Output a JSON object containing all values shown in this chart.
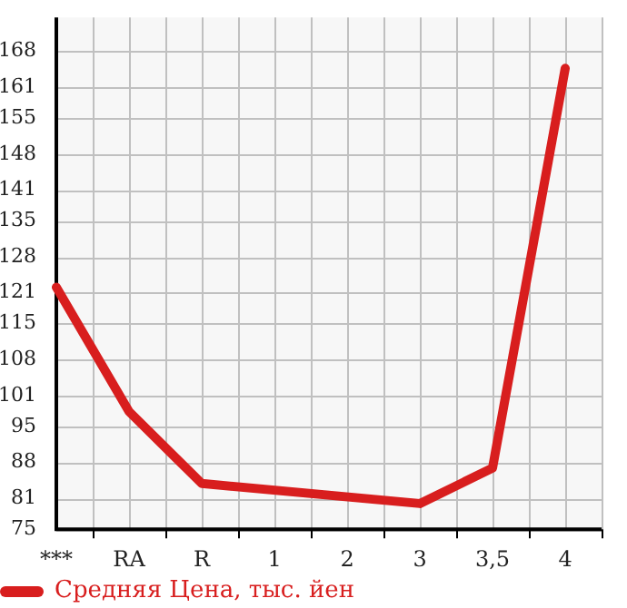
{
  "chart_data": {
    "type": "line",
    "categories": [
      "***",
      "RA",
      "R",
      "1",
      "2",
      "3",
      "3,5",
      "4"
    ],
    "series": [
      {
        "name": "Средняя Цена, тыс. йен",
        "color": "#d81e1e",
        "values": [
          122.1,
          97.9,
          83.9,
          null,
          null,
          80.0,
          86.9,
          164.7
        ]
      }
    ],
    "ylim": [
      75,
      174.6
    ],
    "yticks": [
      75,
      81,
      88,
      95,
      101,
      108,
      115,
      121,
      128,
      135,
      141,
      148,
      155,
      161,
      168
    ],
    "grid": true,
    "legend": "bottom left",
    "marker": "none",
    "line_style": "solid"
  }
}
